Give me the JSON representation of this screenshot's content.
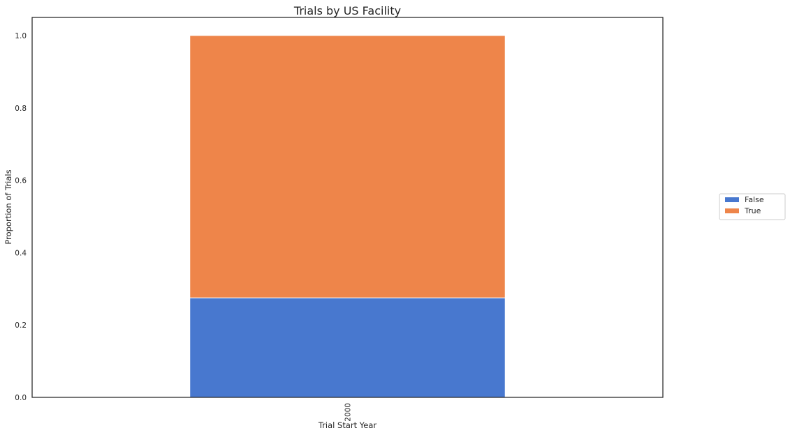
{
  "chart_data": {
    "type": "bar",
    "stacked": true,
    "title": "Trials by US Facility",
    "xlabel": "Trial Start Year",
    "ylabel": "Proportion of Trials",
    "categories": [
      "2000"
    ],
    "series": [
      {
        "name": "False",
        "values": [
          0.275
        ],
        "color": "#4878cf"
      },
      {
        "name": "True",
        "values": [
          0.725
        ],
        "color": "#ee854a"
      }
    ],
    "ylim": [
      0,
      1.05
    ],
    "yticks": [
      "0.0",
      "0.2",
      "0.4",
      "0.6",
      "0.8",
      "1.0"
    ],
    "grid": false,
    "legend_position": "right"
  }
}
